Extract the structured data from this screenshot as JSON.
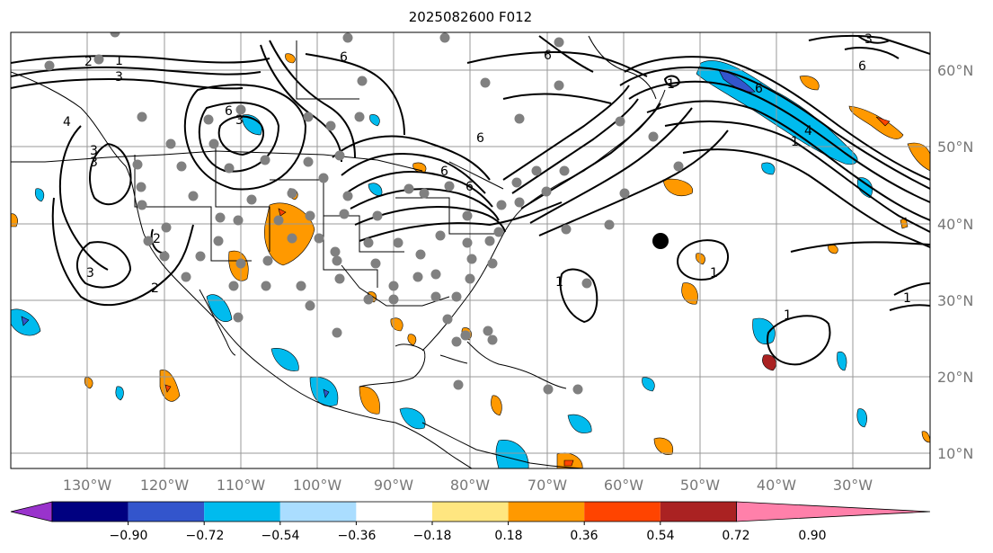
{
  "title": "2025082600 F012",
  "lon_labels": [
    "130°W",
    "120°W",
    "110°W",
    "100°W",
    "90°W",
    "80°W",
    "70°W",
    "60°W",
    "50°W",
    "40°W",
    "30°W"
  ],
  "lat_labels": [
    "60°N",
    "50°N",
    "40°N",
    "30°N",
    "20°N",
    "10°N"
  ],
  "colorbar": {
    "ticks": [
      "−0.90",
      "−0.72",
      "−0.54",
      "−0.36",
      "−0.18",
      "0.18",
      "0.36",
      "0.54",
      "0.72",
      "0.90"
    ],
    "colors": [
      "#9933cc",
      "#000080",
      "#3355cc",
      "#00bbee",
      "#aaddff",
      "#ffffff",
      "#ffe680",
      "#ff9900",
      "#ff4400",
      "#aa2222",
      "#ff80aa"
    ]
  },
  "contour_labels": [
    "6",
    "6",
    "3",
    "6",
    "2",
    "1",
    "3",
    "1",
    "3",
    "6",
    "2",
    "3",
    "1",
    "6",
    "6",
    "4",
    "4",
    "3",
    "1",
    "1",
    "1",
    "1",
    "3",
    "2",
    "6",
    "6"
  ],
  "colors": {
    "frame": "#000000",
    "grid": "#999999",
    "coast": "#000000",
    "station": "#808080"
  }
}
